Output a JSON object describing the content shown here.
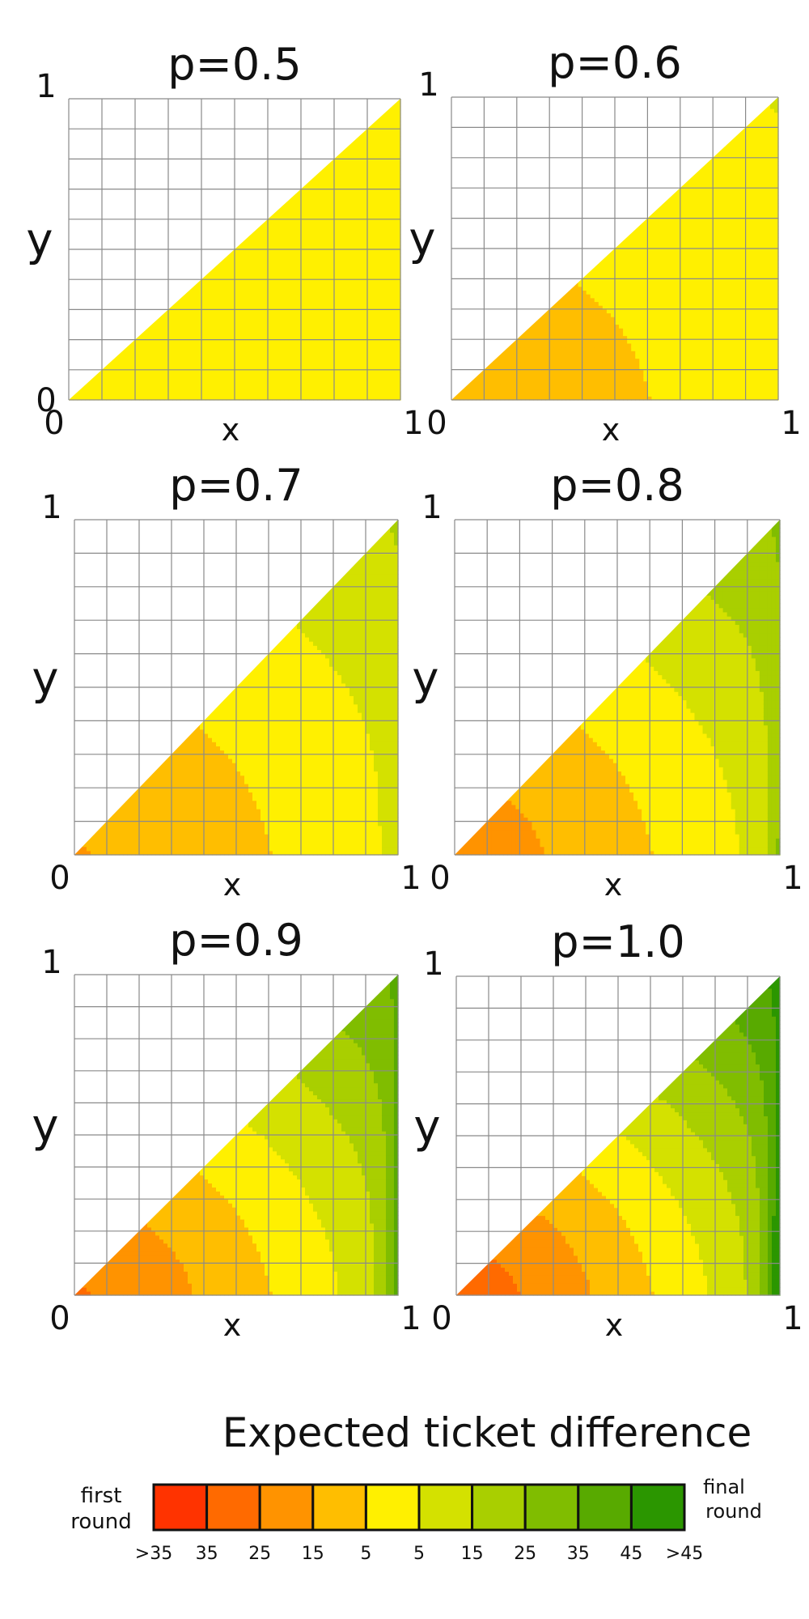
{
  "chart_data": [
    {
      "type": "heatmap",
      "title": "p=0.5",
      "xlabel": "x",
      "ylabel": "y",
      "xlim": [
        0,
        1
      ],
      "ylim": [
        0,
        1
      ],
      "x_ticks": [
        "0",
        "1"
      ],
      "y_ticks": [
        "0",
        "1"
      ],
      "grid": true,
      "grid_divisions": 10,
      "region": "y <= x",
      "p": 0.5
    },
    {
      "type": "heatmap",
      "title": "p=0.6",
      "xlabel": "x",
      "ylabel": "y",
      "xlim": [
        0,
        1
      ],
      "ylim": [
        0,
        1
      ],
      "x_ticks": [
        "0",
        "1"
      ],
      "y_ticks": [
        "1"
      ],
      "grid": true,
      "grid_divisions": 10,
      "region": "y <= x",
      "p": 0.6
    },
    {
      "type": "heatmap",
      "title": "p=0.7",
      "xlabel": "x",
      "ylabel": "y",
      "xlim": [
        0,
        1
      ],
      "ylim": [
        0,
        1
      ],
      "x_ticks": [
        "0",
        "1"
      ],
      "y_ticks": [
        "1"
      ],
      "grid": true,
      "grid_divisions": 10,
      "region": "y <= x",
      "p": 0.7
    },
    {
      "type": "heatmap",
      "title": "p=0.8",
      "xlabel": "x",
      "ylabel": "y",
      "xlim": [
        0,
        1
      ],
      "ylim": [
        0,
        1
      ],
      "x_ticks": [
        "0",
        "1"
      ],
      "y_ticks": [
        "1"
      ],
      "grid": true,
      "grid_divisions": 10,
      "region": "y <= x",
      "p": 0.8
    },
    {
      "type": "heatmap",
      "title": "p=0.9",
      "xlabel": "x",
      "ylabel": "y",
      "xlim": [
        0,
        1
      ],
      "ylim": [
        0,
        1
      ],
      "x_ticks": [
        "0",
        "1"
      ],
      "y_ticks": [
        "1"
      ],
      "grid": true,
      "grid_divisions": 10,
      "region": "y <= x",
      "p": 0.9
    },
    {
      "type": "heatmap",
      "title": "p=1.0",
      "xlabel": "x",
      "ylabel": "y",
      "xlim": [
        0,
        1
      ],
      "ylim": [
        0,
        1
      ],
      "x_ticks": [
        "0",
        "1"
      ],
      "y_ticks": [
        "1"
      ],
      "grid": true,
      "grid_divisions": 10,
      "region": "y <= x",
      "p": 1.0
    }
  ],
  "legend": {
    "title": "Expected ticket difference",
    "left_label": [
      "first",
      "round"
    ],
    "right_label": [
      "final",
      "round"
    ],
    "tick_labels": [
      ">35",
      "35",
      "25",
      "15",
      "5",
      "5",
      "15",
      "25",
      "35",
      "45",
      ">45"
    ],
    "colors": [
      "#ff3300",
      "#ff6a00",
      "#ff9300",
      "#ffbe00",
      "#fff000",
      "#d4e100",
      "#a9cf00",
      "#80bd00",
      "#58aa00",
      "#2b9600"
    ]
  }
}
